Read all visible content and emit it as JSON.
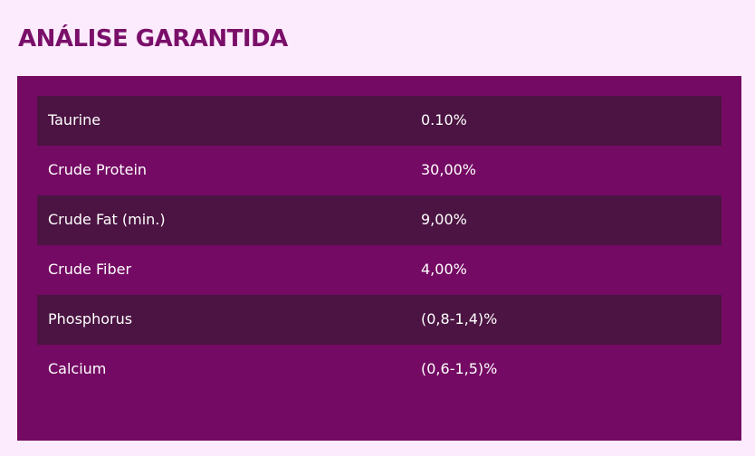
{
  "heading": "ANÁLISE GARANTIDA",
  "colors": {
    "page_background": "#FCEBFC",
    "heading": "#7A0F6A",
    "panel": "#740A63",
    "row_dark": "#4B1442",
    "text": "#FFFFFF"
  },
  "rows": [
    {
      "name": "Taurine",
      "value": "0.10%"
    },
    {
      "name": "Crude Protein",
      "value": "30,00%"
    },
    {
      "name": "Crude Fat (min.)",
      "value": "9,00%"
    },
    {
      "name": "Crude Fiber",
      "value": "4,00%"
    },
    {
      "name": "Phosphorus",
      "value": "(0,8-1,4)%"
    },
    {
      "name": "Calcium",
      "value": "(0,6-1,5)%"
    }
  ]
}
